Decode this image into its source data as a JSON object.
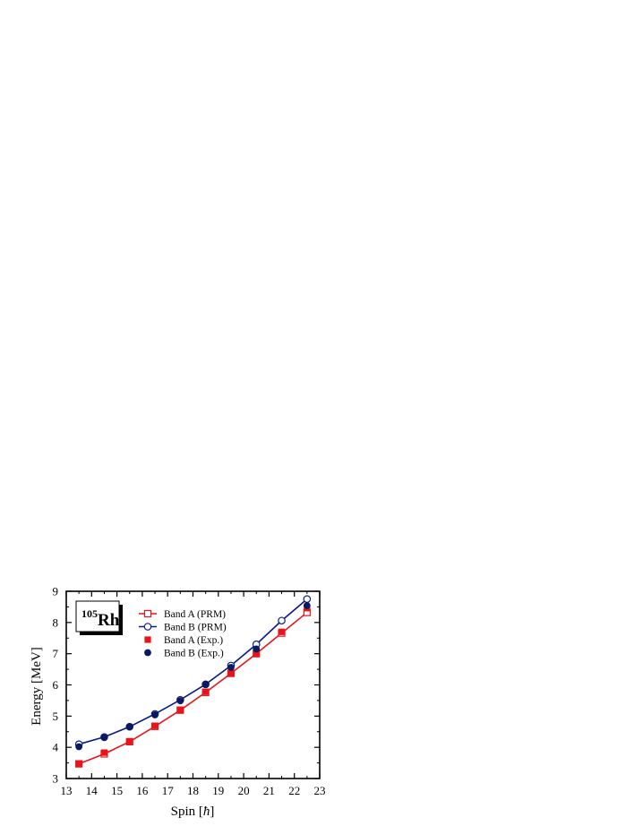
{
  "chart_data": {
    "type": "line",
    "xlabel_prefix": "Spin [",
    "xlabel_symbol": "ħ",
    "xlabel_suffix": "]",
    "ylabel": "Energy [MeV]",
    "xlim": [
      13,
      23
    ],
    "ylim": [
      3,
      9
    ],
    "xticks": [
      13,
      14,
      15,
      16,
      17,
      18,
      19,
      20,
      21,
      22,
      23
    ],
    "yticks": [
      3,
      4,
      5,
      6,
      7,
      8,
      9
    ],
    "nucleus": {
      "mass": "105",
      "symbol": "Rh"
    },
    "legend_position": "top-left",
    "grid": false,
    "series": [
      {
        "name": "Band A (PRM)",
        "style": "line-open-square",
        "color": "#e8141b",
        "x": [
          13.5,
          14.5,
          15.5,
          16.5,
          17.5,
          18.5,
          19.5,
          20.5,
          21.5,
          22.5
        ],
        "y": [
          3.47,
          3.79,
          4.18,
          4.67,
          5.19,
          5.76,
          6.37,
          7.0,
          7.66,
          8.32
        ]
      },
      {
        "name": "Band B (PRM)",
        "style": "line-open-circle",
        "color": "#0a1a8c",
        "x": [
          13.5,
          14.5,
          15.5,
          16.5,
          17.5,
          18.5,
          19.5,
          20.5,
          21.5,
          22.5
        ],
        "y": [
          4.1,
          4.33,
          4.66,
          5.07,
          5.52,
          6.02,
          6.62,
          7.3,
          8.06,
          8.75
        ]
      },
      {
        "name": "Band A (Exp.)",
        "style": "filled-square",
        "color": "#e8141b",
        "x": [
          13.5,
          14.5,
          15.5,
          16.5,
          17.5,
          18.5,
          19.5,
          20.5,
          21.5,
          22.5
        ],
        "y": [
          3.48,
          3.83,
          4.19,
          4.69,
          5.2,
          5.78,
          6.36,
          7.0,
          7.7,
          8.46
        ]
      },
      {
        "name": "Band B (Exp.)",
        "style": "filled-circle",
        "color": "#0a1a5e",
        "x": [
          13.5,
          14.5,
          15.5,
          16.5,
          17.5,
          18.5,
          19.5,
          20.5,
          22.5
        ],
        "y": [
          4.02,
          4.31,
          4.66,
          5.04,
          5.49,
          6.01,
          6.56,
          7.15,
          8.54
        ]
      }
    ]
  }
}
